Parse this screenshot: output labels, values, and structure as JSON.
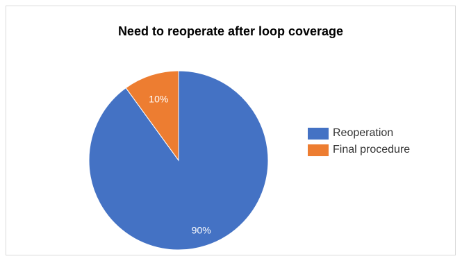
{
  "chart_data": {
    "type": "pie",
    "title": "Need to reoperate after loop coverage",
    "categories": [
      "Reoperation",
      "Final procedure"
    ],
    "values": [
      90,
      10
    ],
    "data_labels": [
      "90%",
      "10%"
    ],
    "colors": [
      "#4472c4",
      "#ed7d31"
    ],
    "legend": "right"
  }
}
